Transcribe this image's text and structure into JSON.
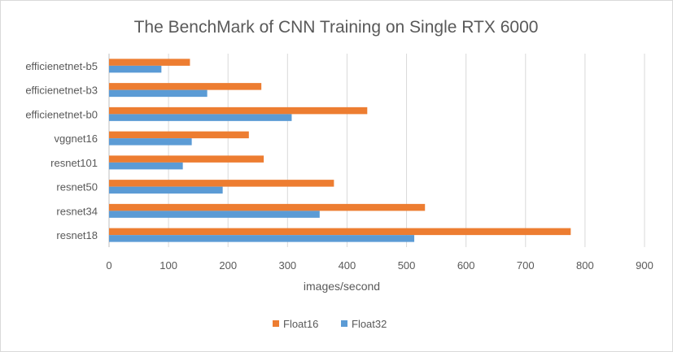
{
  "chart_data": {
    "type": "bar",
    "orientation": "horizontal",
    "title": "The BenchMark of CNN Training on Single RTX 6000",
    "xlabel": "images/second",
    "ylabel": "",
    "xlim": [
      0,
      900
    ],
    "xticks": [
      "0",
      "100",
      "200",
      "300",
      "400",
      "500",
      "600",
      "700",
      "800",
      "900"
    ],
    "categories": [
      "efficienetnet-b5",
      "efficienetnet-b3",
      "efficienetnet-b0",
      "vggnet16",
      "resnet101",
      "resnet50",
      "resnet34",
      "resnet18"
    ],
    "series": [
      {
        "name": "Float16",
        "color": "#ED7D31",
        "values": [
          136,
          256,
          434,
          235,
          260,
          378,
          531,
          776
        ]
      },
      {
        "name": "Float32",
        "color": "#5B9BD5",
        "values": [
          88,
          165,
          307,
          139,
          124,
          191,
          354,
          513
        ]
      }
    ],
    "grid": true,
    "legend_position": "bottom"
  }
}
